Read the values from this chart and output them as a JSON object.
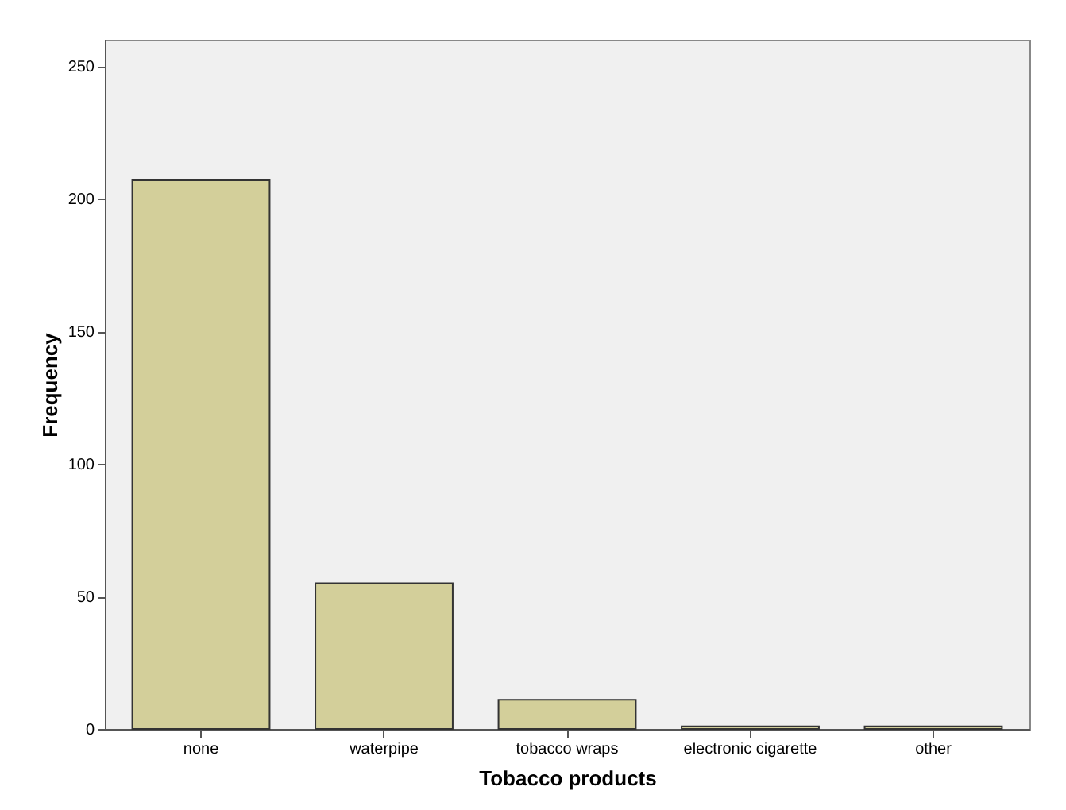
{
  "chart_data": {
    "type": "bar",
    "xlabel": "Tobacco products",
    "ylabel": "Frequency",
    "categories": [
      "none",
      "waterpipe",
      "tobacco wraps",
      "electronic cigarette",
      "other"
    ],
    "values": [
      207,
      55,
      11,
      1,
      1
    ],
    "color": "#d3cf9a",
    "ylim": [
      0,
      260
    ],
    "yticks": [
      0,
      50,
      100,
      150,
      200,
      250
    ],
    "grid": false
  }
}
